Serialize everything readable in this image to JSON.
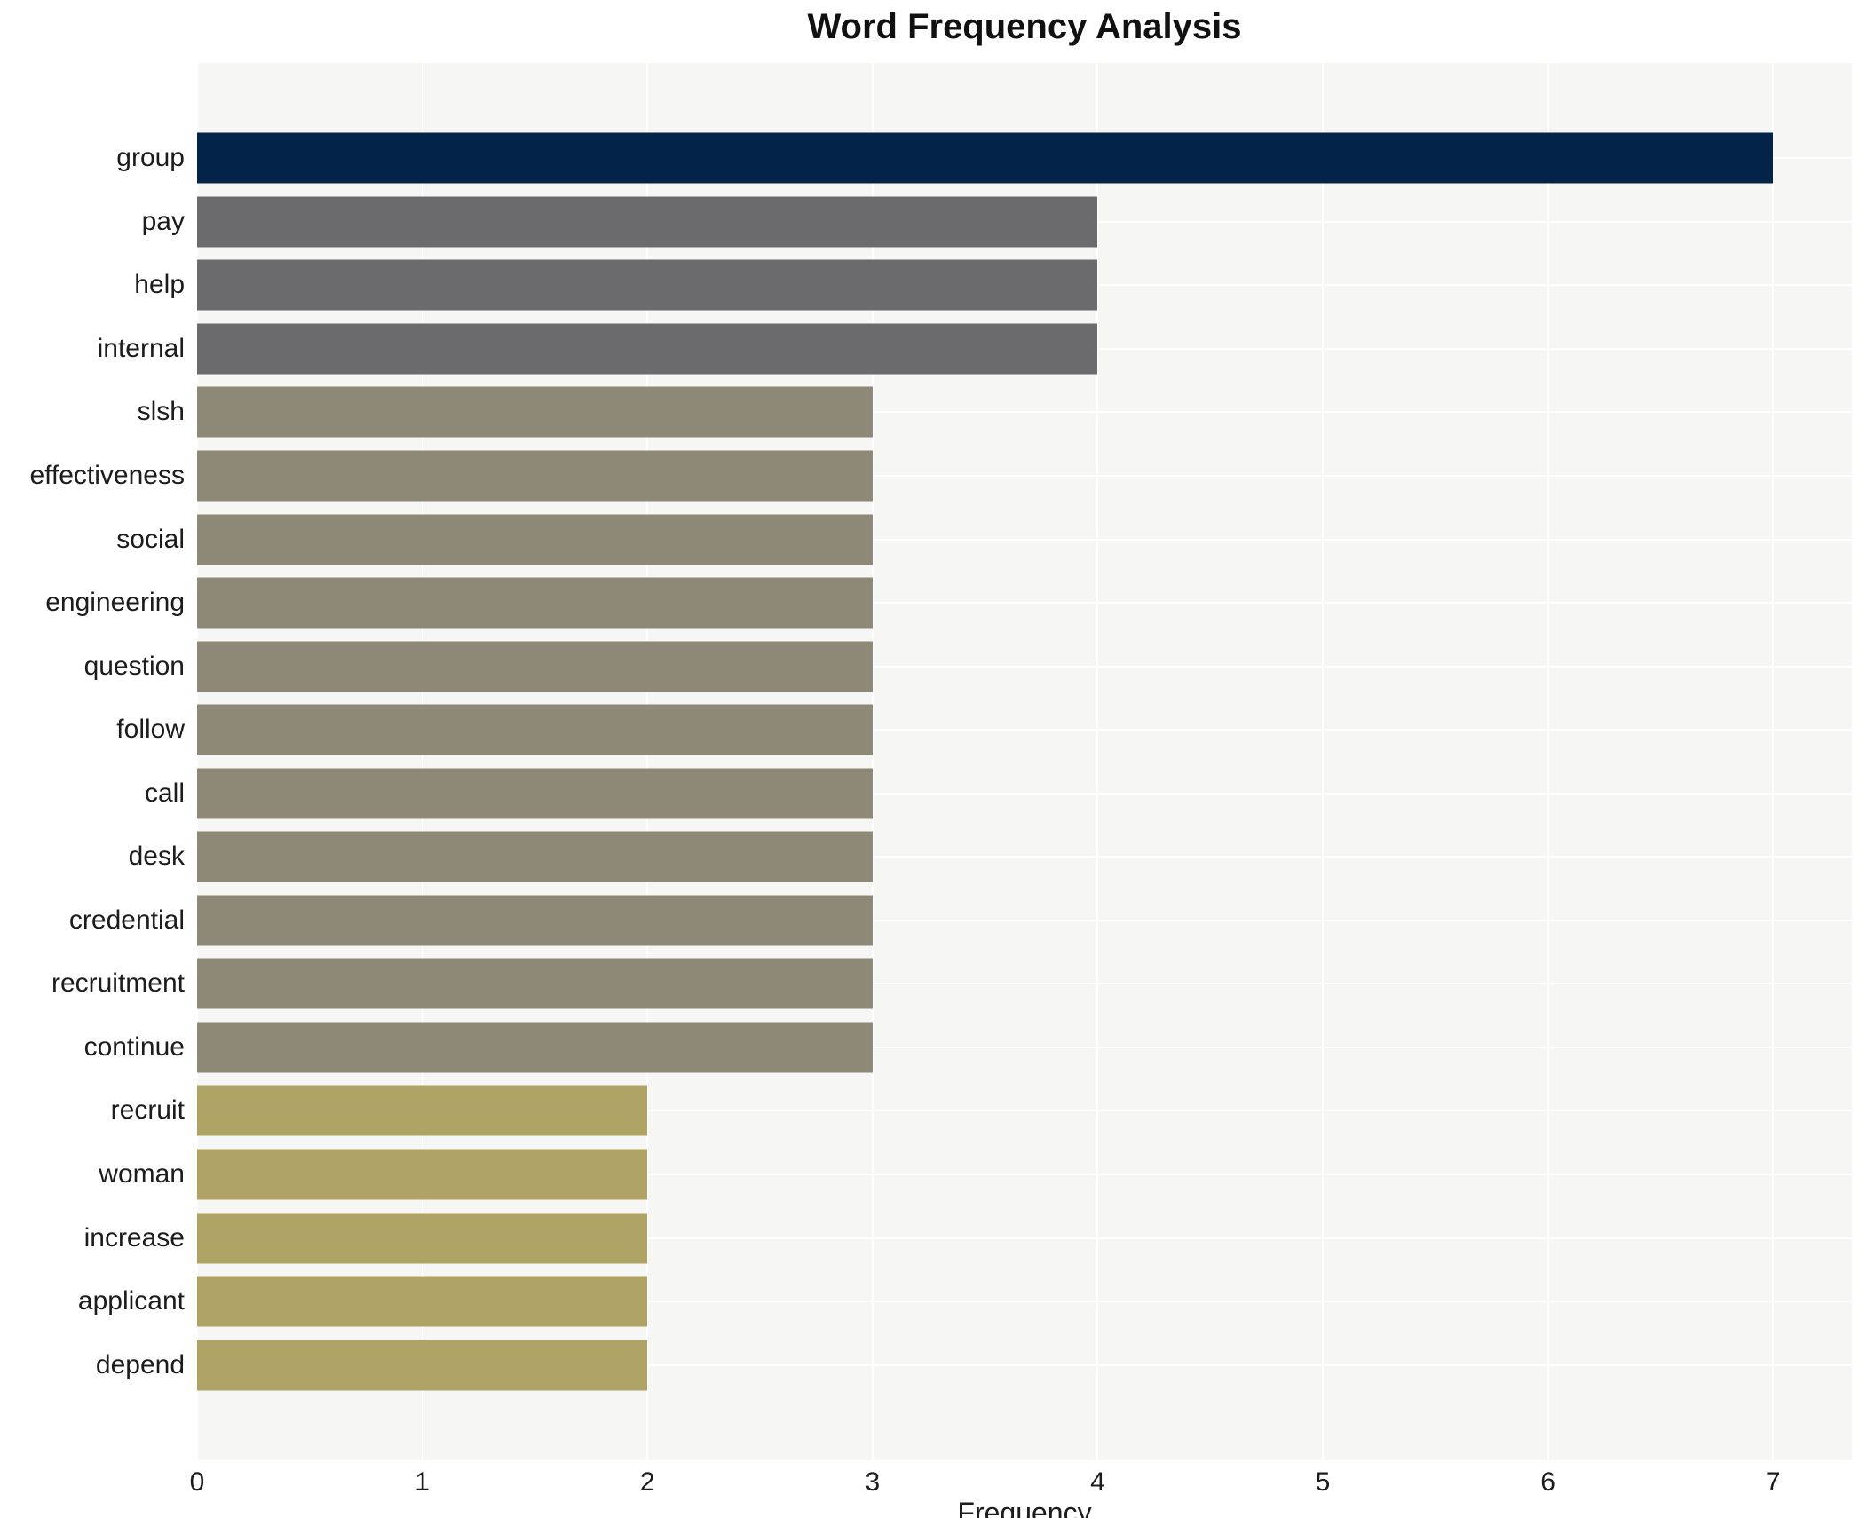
{
  "chart_data": {
    "type": "bar",
    "orientation": "horizontal",
    "title": "Word Frequency Analysis",
    "xlabel": "Frequency",
    "ylabel": "",
    "categories": [
      "group",
      "pay",
      "help",
      "internal",
      "slsh",
      "effectiveness",
      "social",
      "engineering",
      "question",
      "follow",
      "call",
      "desk",
      "credential",
      "recruitment",
      "continue",
      "recruit",
      "woman",
      "increase",
      "applicant",
      "depend"
    ],
    "values": [
      7,
      4,
      4,
      4,
      3,
      3,
      3,
      3,
      3,
      3,
      3,
      3,
      3,
      3,
      3,
      2,
      2,
      2,
      2,
      2
    ],
    "bar_colors": [
      "#032349",
      "#6b6b6e",
      "#6b6b6e",
      "#6b6b6e",
      "#8e8977",
      "#8e8977",
      "#8e8977",
      "#8e8977",
      "#8e8977",
      "#8e8977",
      "#8e8977",
      "#8e8977",
      "#8e8977",
      "#8e8977",
      "#8e8977",
      "#aea365",
      "#aea365",
      "#aea365",
      "#aea365",
      "#aea365"
    ],
    "xticks": [
      0,
      1,
      2,
      3,
      4,
      5,
      6,
      7
    ],
    "xlim": [
      0,
      7.35
    ],
    "grid": true,
    "legend": "none",
    "plot_bg_color": "#f6f6f5",
    "grid_color": "#ffffff",
    "text_color": "#1c1c1c",
    "title_color": "#111111"
  }
}
